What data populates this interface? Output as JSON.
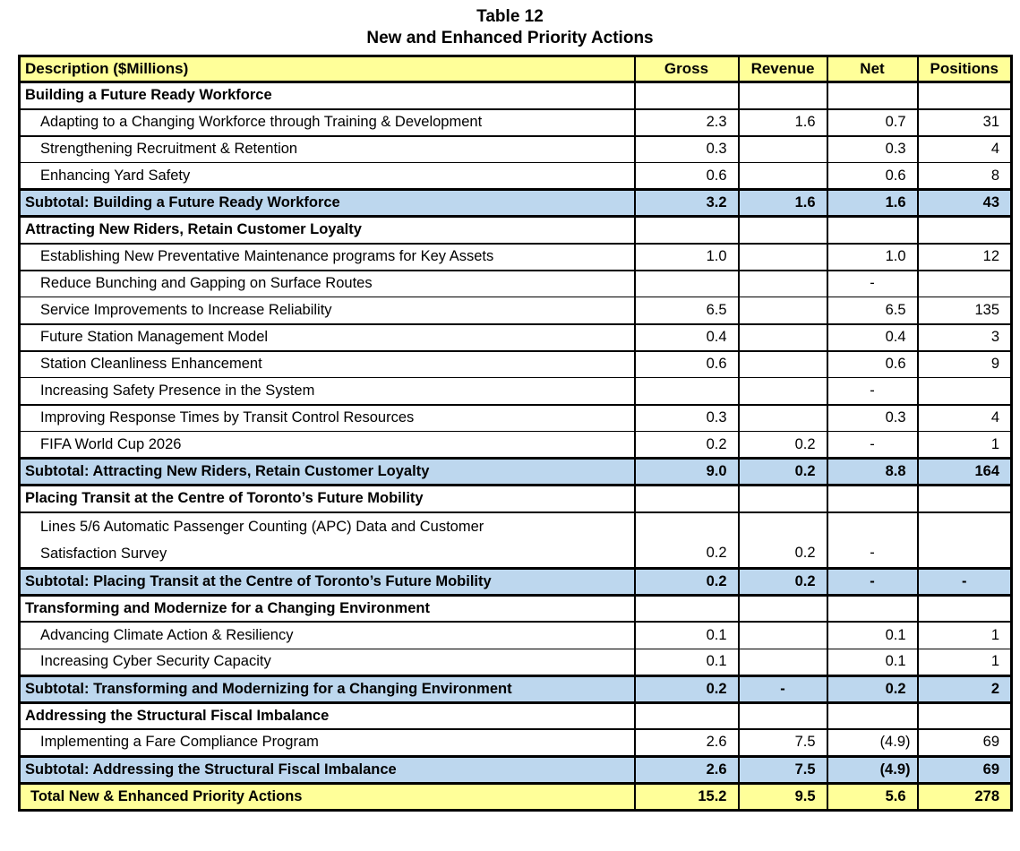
{
  "title": {
    "line1": "Table 12",
    "line2": "New and Enhanced Priority Actions"
  },
  "colors": {
    "header_bg": "#FFFF99",
    "subtotal_bg": "#BDD7EE",
    "total_bg": "#FFFF99",
    "border": "#000000",
    "text": "#000000"
  },
  "table": {
    "columns": [
      "Description ($Millions)",
      "Gross",
      "Revenue",
      "Net",
      "Positions"
    ],
    "rows": [
      {
        "type": "section",
        "b": 2,
        "desc": "Building a Future Ready Workforce",
        "gross": "",
        "revenue": "",
        "net": "",
        "positions": ""
      },
      {
        "type": "item",
        "b": 2,
        "desc": "Adapting to a Changing Workforce through Training & Development",
        "gross": "2.3",
        "revenue": "1.6",
        "net": "0.7",
        "positions": "31"
      },
      {
        "type": "item",
        "b": 1,
        "desc": "Strengthening Recruitment & Retention",
        "gross": "0.3",
        "revenue": "",
        "net": "0.3",
        "positions": "4"
      },
      {
        "type": "item",
        "b": 3,
        "desc": "Enhancing Yard Safety",
        "gross": "0.6",
        "revenue": "",
        "net": "0.6",
        "positions": "8"
      },
      {
        "type": "subtotal",
        "b": 3,
        "desc": "Subtotal: Building a Future Ready Workforce",
        "gross": "3.2",
        "revenue": "1.6",
        "net": "1.6",
        "positions": "43"
      },
      {
        "type": "section",
        "b": 2,
        "desc": "Attracting New Riders, Retain Customer Loyalty",
        "gross": "",
        "revenue": "",
        "net": "",
        "positions": ""
      },
      {
        "type": "item",
        "b": 2,
        "desc": "Establishing New Preventative Maintenance programs for Key Assets",
        "gross": "1.0",
        "revenue": "",
        "net": "1.0",
        "positions": "12"
      },
      {
        "type": "item",
        "b": 1,
        "desc": "Reduce Bunching and Gapping on Surface Routes",
        "gross": "",
        "revenue": "",
        "net": "-",
        "positions": ""
      },
      {
        "type": "item",
        "b": 2,
        "desc": "Service Improvements to Increase Reliability",
        "gross": "6.5",
        "revenue": "",
        "net": "6.5",
        "positions": "135"
      },
      {
        "type": "item",
        "b": 2,
        "desc": "Future Station Management Model",
        "gross": "0.4",
        "revenue": "",
        "net": "0.4",
        "positions": "3"
      },
      {
        "type": "item",
        "b": 1,
        "desc": "Station Cleanliness Enhancement",
        "gross": "0.6",
        "revenue": "",
        "net": "0.6",
        "positions": "9"
      },
      {
        "type": "item",
        "b": 2,
        "desc": "Increasing Safety Presence in the System",
        "gross": "",
        "revenue": "",
        "net": "-",
        "positions": ""
      },
      {
        "type": "item",
        "b": 1,
        "desc": "Improving Response Times by Transit Control Resources",
        "gross": "0.3",
        "revenue": "",
        "net": "0.3",
        "positions": "4"
      },
      {
        "type": "item",
        "b": 3,
        "desc": "FIFA World Cup 2026",
        "gross": "0.2",
        "revenue": "0.2",
        "net": "-",
        "positions": "1"
      },
      {
        "type": "subtotal",
        "b": 3,
        "desc": "Subtotal: Attracting New Riders, Retain Customer Loyalty",
        "gross": "9.0",
        "revenue": "0.2",
        "net": "8.8",
        "positions": "164"
      },
      {
        "type": "section",
        "b": 2,
        "desc": "Placing Transit at the Centre of Toronto’s Future Mobility",
        "gross": "",
        "revenue": "",
        "net": "",
        "positions": ""
      },
      {
        "type": "item2",
        "b": 3,
        "desc": "Lines 5/6 Automatic Passenger Counting (APC) Data and Customer\nSatisfaction Survey",
        "gross": "0.2",
        "revenue": "0.2",
        "net": "-",
        "positions": ""
      },
      {
        "type": "subtotal",
        "b": 3,
        "desc": "Subtotal: Placing Transit at the Centre of Toronto’s Future Mobility",
        "gross": "0.2",
        "revenue": "0.2",
        "net": "-",
        "positions": "-"
      },
      {
        "type": "section",
        "b": 2,
        "desc": "Transforming and Modernize for a Changing Environment",
        "gross": "",
        "revenue": "",
        "net": "",
        "positions": ""
      },
      {
        "type": "item",
        "b": 1,
        "desc": "Advancing Climate Action & Resiliency",
        "gross": "0.1",
        "revenue": "",
        "net": "0.1",
        "positions": "1"
      },
      {
        "type": "item",
        "b": 3,
        "desc": "Increasing Cyber Security Capacity",
        "gross": "0.1",
        "revenue": "",
        "net": "0.1",
        "positions": "1"
      },
      {
        "type": "subtotal",
        "b": 3,
        "desc": "Subtotal: Transforming and Modernizing for a Changing Environment",
        "gross": "0.2",
        "revenue": "-",
        "net": "0.2",
        "positions": "2"
      },
      {
        "type": "section",
        "b": 2,
        "desc": "Addressing the Structural Fiscal Imbalance",
        "gross": "",
        "revenue": "",
        "net": "",
        "positions": ""
      },
      {
        "type": "item",
        "b": 3,
        "desc": "Implementing a Fare Compliance Program",
        "gross": "2.6",
        "revenue": "7.5",
        "net": "(4.9)",
        "positions": "69"
      },
      {
        "type": "subtotal",
        "b": 3,
        "desc": "Subtotal: Addressing the Structural Fiscal Imbalance",
        "gross": "2.6",
        "revenue": "7.5",
        "net": "(4.9)",
        "positions": "69"
      },
      {
        "type": "total",
        "b": 3,
        "desc": "Total New & Enhanced Priority Actions",
        "gross": "15.2",
        "revenue": "9.5",
        "net": "5.6",
        "positions": "278"
      }
    ]
  }
}
